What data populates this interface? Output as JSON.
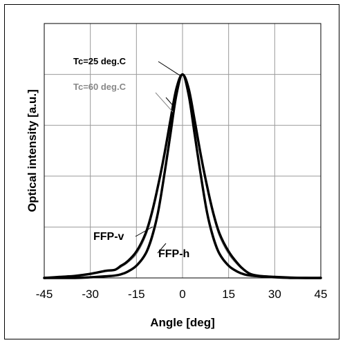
{
  "chart_data": {
    "type": "line",
    "title": "",
    "xlabel": "Angle [deg]",
    "ylabel": "Optical intensity [a.u.]",
    "xlim": [
      -45,
      45
    ],
    "ylim": [
      0,
      1.25
    ],
    "xticks": [
      -45,
      -30,
      -15,
      0,
      15,
      30,
      45
    ],
    "xtick_labels": [
      "-45",
      "-30",
      "-15",
      "0",
      "15",
      "30",
      "45"
    ],
    "grid": true,
    "x": [
      -45,
      -40,
      -35,
      -30,
      -25,
      -22,
      -20,
      -18,
      -15,
      -12,
      -10,
      -8,
      -6,
      -4,
      -2,
      0,
      2,
      4,
      6,
      8,
      10,
      12,
      15,
      18,
      20,
      22,
      25,
      30,
      35,
      40,
      45
    ],
    "series": [
      {
        "name": "FFP-v",
        "temperature": "Tc=25 deg.C",
        "color": "#000000",
        "values": [
          0.0,
          0.005,
          0.01,
          0.02,
          0.035,
          0.04,
          0.06,
          0.08,
          0.13,
          0.22,
          0.32,
          0.45,
          0.6,
          0.77,
          0.93,
          1.0,
          0.93,
          0.77,
          0.6,
          0.45,
          0.32,
          0.22,
          0.13,
          0.07,
          0.04,
          0.02,
          0.01,
          0.005,
          0.002,
          0.0,
          0.0
        ]
      },
      {
        "name": "FFP-h",
        "temperature": "Tc=25 deg.C",
        "color": "#000000",
        "values": [
          0.0,
          0.0,
          0.0,
          0.003,
          0.008,
          0.012,
          0.018,
          0.03,
          0.06,
          0.12,
          0.2,
          0.32,
          0.5,
          0.7,
          0.9,
          1.0,
          0.9,
          0.7,
          0.5,
          0.32,
          0.2,
          0.12,
          0.06,
          0.03,
          0.018,
          0.012,
          0.008,
          0.003,
          0.0,
          0.0,
          0.0
        ]
      },
      {
        "name": "FFP-v",
        "temperature": "Tc=60 deg.C",
        "color": "#888888",
        "values": [
          0.0,
          0.005,
          0.01,
          0.02,
          0.033,
          0.038,
          0.055,
          0.075,
          0.12,
          0.21,
          0.31,
          0.44,
          0.59,
          0.76,
          0.92,
          1.0,
          0.92,
          0.76,
          0.59,
          0.44,
          0.31,
          0.21,
          0.12,
          0.065,
          0.038,
          0.018,
          0.01,
          0.005,
          0.002,
          0.0,
          0.0
        ]
      },
      {
        "name": "FFP-h",
        "temperature": "Tc=60 deg.C",
        "color": "#888888",
        "values": [
          0.0,
          0.0,
          0.0,
          0.003,
          0.007,
          0.011,
          0.017,
          0.028,
          0.058,
          0.115,
          0.19,
          0.31,
          0.49,
          0.69,
          0.89,
          1.0,
          0.89,
          0.69,
          0.49,
          0.31,
          0.19,
          0.115,
          0.058,
          0.028,
          0.017,
          0.011,
          0.007,
          0.003,
          0.0,
          0.0,
          0.0
        ]
      }
    ],
    "annotations": [
      {
        "id": "tc25",
        "text": "Tc=25 deg.C",
        "color": "#000000",
        "x": 0,
        "y": 1.0
      },
      {
        "id": "tc60",
        "text": "Tc=60 deg.C",
        "color": "#888888",
        "x": 0,
        "y": 1.0
      },
      {
        "id": "ffpv",
        "text": "FFP-v",
        "color": "#000000",
        "x": -18,
        "y": 0.08
      },
      {
        "id": "ffph",
        "text": "FFP-h",
        "color": "#000000",
        "x": 4,
        "y": 0.13
      }
    ]
  }
}
